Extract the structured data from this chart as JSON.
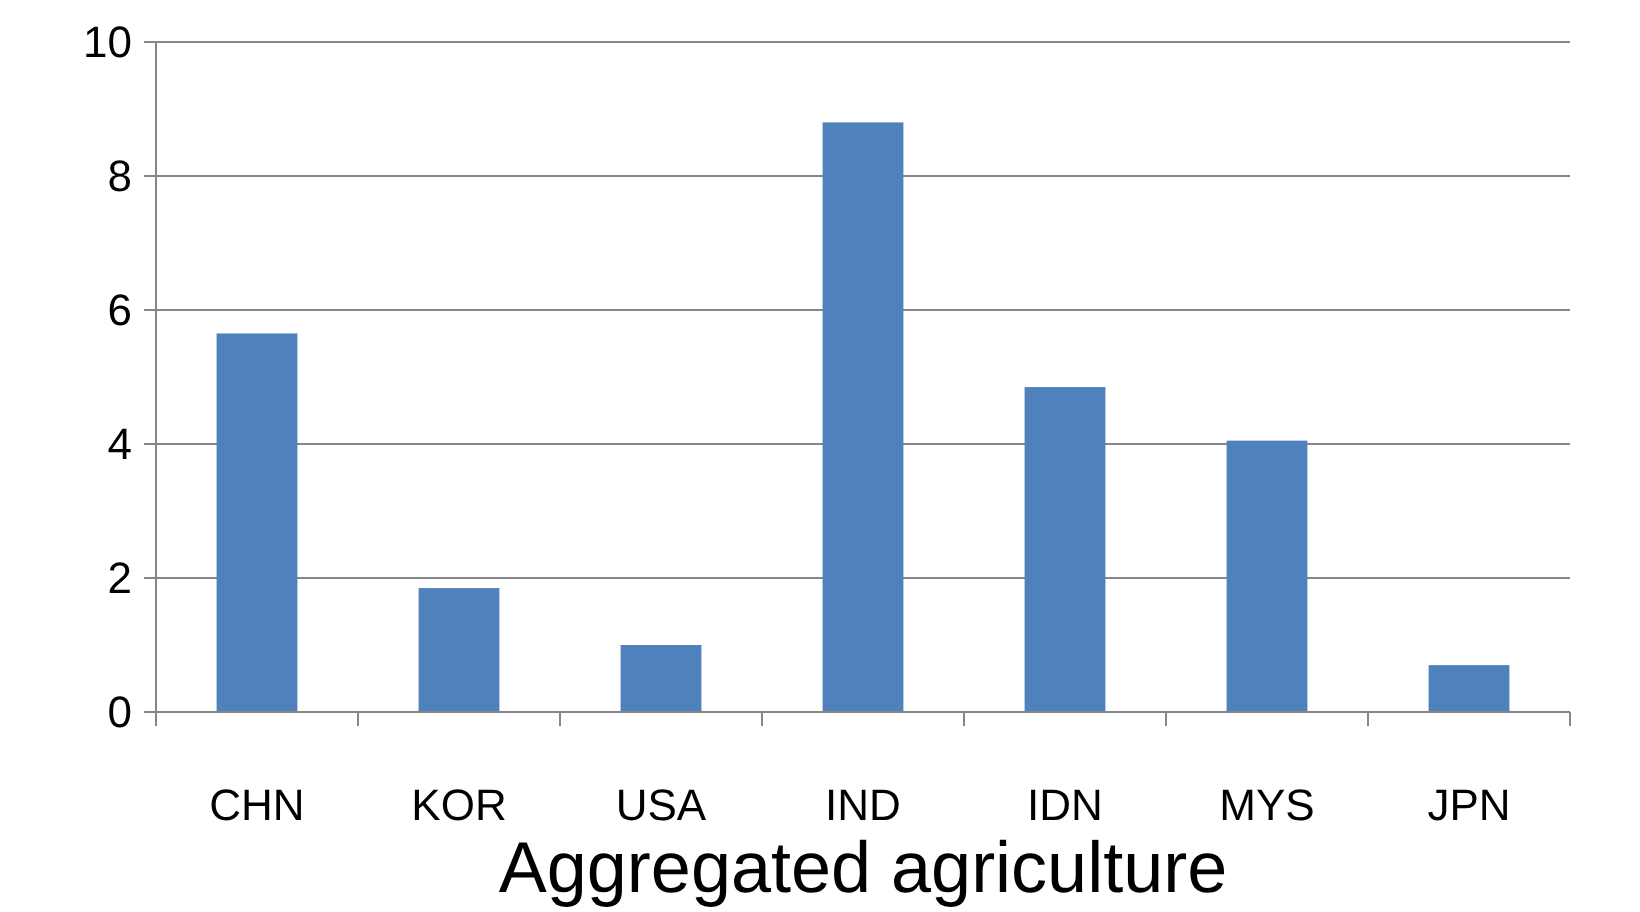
{
  "chart_data": {
    "type": "bar",
    "xlabel": "Aggregated agriculture",
    "categories": [
      "CHN",
      "KOR",
      "USA",
      "IND",
      "IDN",
      "MYS",
      "JPN"
    ],
    "values": [
      5.65,
      1.85,
      1.0,
      8.8,
      4.85,
      4.05,
      0.7
    ],
    "color": "#4f81bd",
    "ylim": [
      0,
      10
    ],
    "yticks": [
      0,
      2,
      4,
      6,
      8,
      10
    ],
    "grid": "y"
  }
}
